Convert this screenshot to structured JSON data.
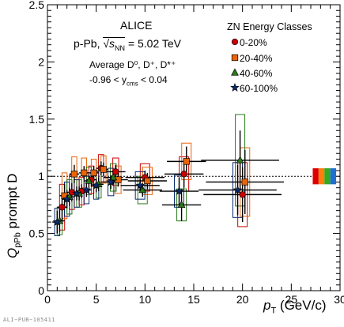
{
  "figure": {
    "experiment": "ALICE",
    "system_prefix": "p-Pb,",
    "energy_value": "= 5.02 TeV",
    "particle_line": "Average D⁰, D⁺, D*⁺",
    "rapidity_line": "-0.96 < y",
    "rapidity_sub": "cms",
    "rapidity_tail": " < 0.04",
    "footer": "ALI−PUB−105411",
    "ylabel_main": "Q",
    "ylabel_sub": "pPb",
    "ylabel_tail": " prompt D",
    "xlabel_main": "p",
    "xlabel_sub": "T",
    "xlabel_tail": " (GeV/c)",
    "sqrt_label": "√s",
    "sqrt_sub": "NN"
  },
  "chart_data": {
    "type": "scatter",
    "xlim": [
      0,
      30
    ],
    "ylim": [
      0,
      2.5
    ],
    "x_ticks": [
      "0",
      "5",
      "10",
      "15",
      "20",
      "25",
      "30"
    ],
    "y_ticks": [
      "0",
      "0.5",
      "1",
      "1.5",
      "2",
      "2.5"
    ],
    "reference_line": 1,
    "legend_title": "ZN Energy Classes",
    "legend_position": "top-right",
    "series": [
      {
        "name": "0-20%",
        "color": "#cc0000",
        "marker": "circle",
        "points": [
          {
            "x": 1.5,
            "y": 0.73,
            "xerr": 0.5,
            "yerr": 0.12,
            "syst": 0.2
          },
          {
            "x": 2.5,
            "y": 0.86,
            "xerr": 0.5,
            "yerr": 0.08,
            "syst": 0.15
          },
          {
            "x": 3.5,
            "y": 0.87,
            "xerr": 0.5,
            "yerr": 0.06,
            "syst": 0.12
          },
          {
            "x": 4.5,
            "y": 0.97,
            "xerr": 0.5,
            "yerr": 0.06,
            "syst": 0.12
          },
          {
            "x": 5.5,
            "y": 1.07,
            "xerr": 0.5,
            "yerr": 0.06,
            "syst": 0.12
          },
          {
            "x": 7,
            "y": 1.04,
            "xerr": 1,
            "yerr": 0.06,
            "syst": 0.12
          },
          {
            "x": 10,
            "y": 0.99,
            "xerr": 2,
            "yerr": 0.06,
            "syst": 0.12
          },
          {
            "x": 14,
            "y": 1.02,
            "xerr": 2,
            "yerr": 0.12,
            "syst": 0.15
          },
          {
            "x": 20,
            "y": 0.84,
            "xerr": 4,
            "yerr": 0.24,
            "syst": 0.28
          }
        ]
      },
      {
        "name": "20-40%",
        "color": "#e8650a",
        "marker": "square",
        "points": [
          {
            "x": 1.75,
            "y": 0.83,
            "xerr": 0.5,
            "yerr": 0.1,
            "syst": 0.2
          },
          {
            "x": 2.75,
            "y": 1.02,
            "xerr": 0.5,
            "yerr": 0.08,
            "syst": 0.15
          },
          {
            "x": 3.75,
            "y": 1.03,
            "xerr": 0.5,
            "yerr": 0.06,
            "syst": 0.13
          },
          {
            "x": 4.75,
            "y": 1.03,
            "xerr": 0.5,
            "yerr": 0.06,
            "syst": 0.12
          },
          {
            "x": 5.75,
            "y": 1.06,
            "xerr": 0.5,
            "yerr": 0.06,
            "syst": 0.12
          },
          {
            "x": 7.25,
            "y": 0.97,
            "xerr": 1,
            "yerr": 0.06,
            "syst": 0.12
          },
          {
            "x": 10.25,
            "y": 0.96,
            "xerr": 2,
            "yerr": 0.07,
            "syst": 0.12
          },
          {
            "x": 14.25,
            "y": 1.13,
            "xerr": 2,
            "yerr": 0.13,
            "syst": 0.16
          },
          {
            "x": 20.25,
            "y": 0.95,
            "xerr": 4,
            "yerr": 0.28,
            "syst": 0.3
          }
        ]
      },
      {
        "name": "40-60%",
        "color": "#2a7a1a",
        "marker": "triangle",
        "points": [
          {
            "x": 1.25,
            "y": 0.61,
            "xerr": 0.5,
            "yerr": 0.1,
            "syst": 0.12
          },
          {
            "x": 2.25,
            "y": 0.82,
            "xerr": 0.5,
            "yerr": 0.08,
            "syst": 0.15
          },
          {
            "x": 3.25,
            "y": 0.85,
            "xerr": 0.5,
            "yerr": 0.06,
            "syst": 0.12
          },
          {
            "x": 4.25,
            "y": 0.96,
            "xerr": 0.5,
            "yerr": 0.06,
            "syst": 0.12
          },
          {
            "x": 5.25,
            "y": 0.93,
            "xerr": 0.5,
            "yerr": 0.06,
            "syst": 0.12
          },
          {
            "x": 6.75,
            "y": 0.99,
            "xerr": 1,
            "yerr": 0.06,
            "syst": 0.12
          },
          {
            "x": 9.75,
            "y": 0.88,
            "xerr": 2,
            "yerr": 0.06,
            "syst": 0.12
          },
          {
            "x": 13.75,
            "y": 0.75,
            "xerr": 2,
            "yerr": 0.14,
            "syst": 0.14
          },
          {
            "x": 19.75,
            "y": 1.14,
            "xerr": 4,
            "yerr": 0.26,
            "syst": 0.4
          }
        ]
      },
      {
        "name": "60-100%",
        "color": "#0a2a6e",
        "marker": "star",
        "points": [
          {
            "x": 1,
            "y": 0.6,
            "xerr": 0.5,
            "yerr": 0.1,
            "syst": 0.12
          },
          {
            "x": 2,
            "y": 0.8,
            "xerr": 0.5,
            "yerr": 0.08,
            "syst": 0.15
          },
          {
            "x": 3,
            "y": 0.85,
            "xerr": 0.5,
            "yerr": 0.06,
            "syst": 0.12
          },
          {
            "x": 4,
            "y": 0.88,
            "xerr": 0.5,
            "yerr": 0.06,
            "syst": 0.12
          },
          {
            "x": 5,
            "y": 0.92,
            "xerr": 0.5,
            "yerr": 0.06,
            "syst": 0.12
          },
          {
            "x": 6.5,
            "y": 0.95,
            "xerr": 1,
            "yerr": 0.06,
            "syst": 0.12
          },
          {
            "x": 9.5,
            "y": 0.92,
            "xerr": 2,
            "yerr": 0.06,
            "syst": 0.12
          },
          {
            "x": 13.5,
            "y": 0.87,
            "xerr": 2,
            "yerr": 0.12,
            "syst": 0.14
          },
          {
            "x": 19.5,
            "y": 0.88,
            "xerr": 4,
            "yerr": 0.22,
            "syst": 0.24
          }
        ]
      }
    ],
    "normalization_bands": [
      {
        "series": "0-20%",
        "color": "#dd0000",
        "low": 0.93,
        "high": 1.07
      },
      {
        "series": "20-40%",
        "color": "#ff7f0e",
        "low": 0.93,
        "high": 1.07
      },
      {
        "series": "40-60%",
        "color": "#33aa22",
        "low": 0.93,
        "high": 1.07
      },
      {
        "series": "60-100%",
        "color": "#1f6fd0",
        "low": 0.93,
        "high": 1.07
      }
    ]
  }
}
